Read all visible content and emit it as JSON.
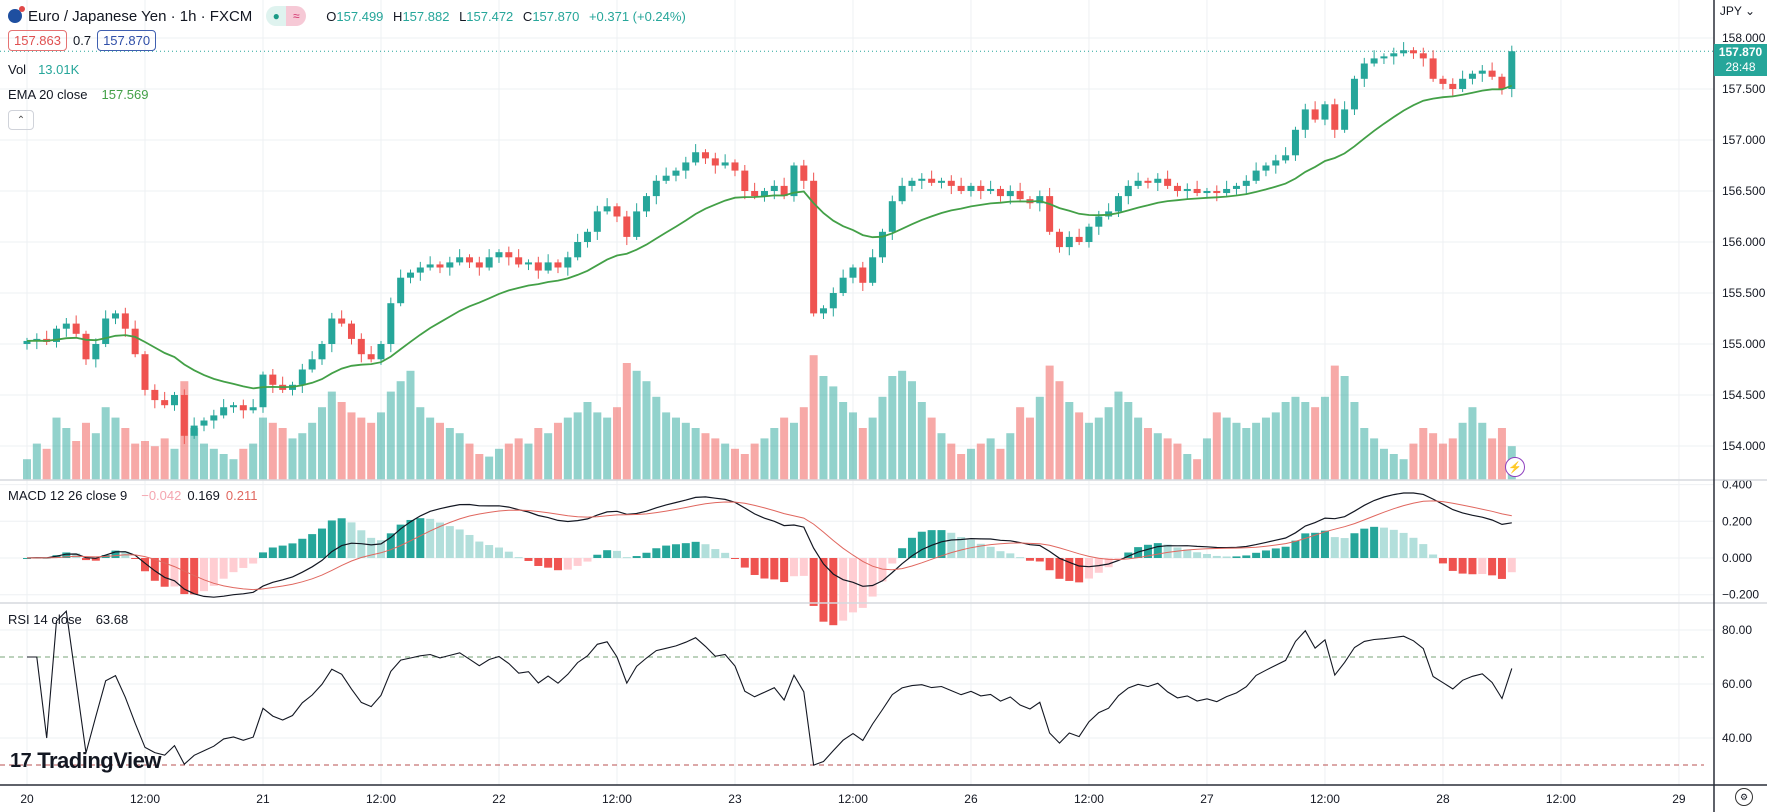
{
  "header": {
    "symbol_title": "Euro / Japanese Yen · 1h · FXCM",
    "ohlc": {
      "o_label": "O",
      "o": "157.499",
      "h_label": "H",
      "h": "157.882",
      "l_label": "L",
      "l": "157.472",
      "c_label": "C",
      "c": "157.870",
      "change": "+0.371 (+0.24%)"
    },
    "status_open_icon": "●",
    "status_delayed_icon": "≈",
    "sell_price": "157.863",
    "spread": "0.7",
    "buy_price": "157.870"
  },
  "legends": {
    "vol_label": "Vol",
    "vol_value": "13.01K",
    "ema_label": "EMA 20 close",
    "ema_value": "157.569",
    "macd_label": "MACD 12 26 close 9",
    "macd_hist": "−0.042",
    "macd_line": "0.169",
    "macd_signal": "0.211",
    "rsi_label": "RSI 14 close",
    "rsi_value": "63.68",
    "collapse_icon": "⌃"
  },
  "axis": {
    "currency": "JPY ⌄",
    "last_price": "157.870",
    "countdown": "28:48",
    "price_ticks": [
      "158.000",
      "157.500",
      "157.000",
      "156.500",
      "156.000",
      "155.500",
      "155.000",
      "154.500",
      "154.000"
    ],
    "macd_ticks": [
      "0.400",
      "0.200",
      "0.000",
      "−0.200"
    ],
    "rsi_ticks": [
      "80.00",
      "60.00",
      "40.00"
    ]
  },
  "branding": {
    "logo_mark": "17",
    "logo_text": "TradingView"
  },
  "colors": {
    "up": "#26a69a",
    "down": "#ef5350",
    "ema": "#43a047",
    "macd": "#131722",
    "signal": "#e0675f"
  },
  "chart_data": {
    "type": "candlestick",
    "title": "Euro / Japanese Yen · 1h · FXCM",
    "price_range": [
      153.6,
      158.37
    ],
    "macd_range": [
      -0.25,
      0.42
    ],
    "rsi_range": [
      25,
      90
    ],
    "rsi_bands": [
      70,
      30
    ],
    "time_ticks": [
      {
        "label": "20",
        "index": 0
      },
      {
        "label": "12:00",
        "index": 12
      },
      {
        "label": "21",
        "index": 24
      },
      {
        "label": "12:00",
        "index": 36
      },
      {
        "label": "22",
        "index": 48
      },
      {
        "label": "12:00",
        "index": 60
      },
      {
        "label": "23",
        "index": 72
      },
      {
        "label": "12:00",
        "index": 84
      },
      {
        "label": "26",
        "index": 96
      },
      {
        "label": "12:00",
        "index": 108
      },
      {
        "label": "27",
        "index": 120
      },
      {
        "label": "12:00",
        "index": 132
      },
      {
        "label": "28",
        "index": 144
      },
      {
        "label": "12:00",
        "index": 156
      },
      {
        "label": "29",
        "index": 168
      }
    ],
    "first_open": 155.0,
    "close": [
      155.03,
      155.05,
      155.02,
      155.15,
      155.2,
      155.1,
      154.85,
      155.0,
      155.25,
      155.3,
      155.15,
      154.9,
      154.55,
      154.45,
      154.4,
      154.5,
      154.1,
      154.2,
      154.25,
      154.3,
      154.38,
      154.4,
      154.35,
      154.38,
      154.7,
      154.6,
      154.55,
      154.6,
      154.75,
      154.85,
      155.0,
      155.25,
      155.2,
      155.05,
      154.9,
      154.85,
      155.0,
      155.4,
      155.65,
      155.7,
      155.75,
      155.78,
      155.75,
      155.8,
      155.85,
      155.8,
      155.75,
      155.85,
      155.9,
      155.85,
      155.78,
      155.8,
      155.72,
      155.8,
      155.75,
      155.85,
      156.0,
      156.1,
      156.3,
      156.35,
      156.25,
      156.05,
      156.3,
      156.45,
      156.6,
      156.65,
      156.7,
      156.78,
      156.88,
      156.82,
      156.75,
      156.78,
      156.7,
      156.5,
      156.45,
      156.5,
      156.55,
      156.45,
      156.75,
      156.6,
      155.3,
      155.35,
      155.5,
      155.65,
      155.75,
      155.6,
      155.85,
      156.1,
      156.4,
      156.55,
      156.6,
      156.62,
      156.58,
      156.6,
      156.55,
      156.5,
      156.55,
      156.5,
      156.52,
      156.45,
      156.5,
      156.42,
      156.38,
      156.45,
      156.1,
      155.95,
      156.05,
      156.0,
      156.15,
      156.25,
      156.3,
      156.45,
      156.55,
      156.6,
      156.58,
      156.62,
      156.55,
      156.5,
      156.52,
      156.48,
      156.5,
      156.48,
      156.52,
      156.55,
      156.6,
      156.7,
      156.75,
      156.8,
      156.85,
      157.1,
      157.3,
      157.2,
      157.35,
      157.1,
      157.3,
      157.6,
      157.75,
      157.8,
      157.82,
      157.85,
      157.88,
      157.85,
      157.8,
      157.6,
      157.55,
      157.5,
      157.6,
      157.65,
      157.68,
      157.62,
      157.5,
      157.87
    ],
    "volume_k": [
      8,
      14,
      12,
      24,
      20,
      15,
      22,
      18,
      28,
      24,
      20,
      14,
      15,
      13,
      16,
      12,
      38,
      20,
      14,
      12,
      10,
      8,
      12,
      14,
      24,
      22,
      20,
      16,
      18,
      22,
      28,
      34,
      30,
      26,
      24,
      22,
      26,
      34,
      38,
      42,
      28,
      24,
      22,
      20,
      18,
      14,
      10,
      9,
      12,
      14,
      16,
      14,
      20,
      18,
      22,
      24,
      26,
      30,
      26,
      24,
      28,
      45,
      42,
      38,
      32,
      26,
      24,
      22,
      20,
      18,
      16,
      14,
      12,
      10,
      14,
      16,
      20,
      24,
      22,
      28,
      48,
      40,
      36,
      30,
      26,
      20,
      24,
      32,
      40,
      42,
      38,
      30,
      24,
      18,
      14,
      10,
      12,
      14,
      16,
      12,
      18,
      28,
      24,
      32,
      44,
      38,
      30,
      26,
      22,
      24,
      28,
      34,
      30,
      24,
      20,
      18,
      16,
      14,
      10,
      8,
      16,
      26,
      24,
      22,
      20,
      22,
      24,
      26,
      30,
      32,
      30,
      28,
      32,
      44,
      40,
      30,
      20,
      16,
      12,
      10,
      8,
      14,
      20,
      18,
      14,
      16,
      22,
      28,
      22,
      16,
      20,
      13.01
    ],
    "indicators": [
      "EMA 20 close",
      "Volume",
      "MACD 12 26 close 9",
      "RSI 14 close"
    ]
  }
}
